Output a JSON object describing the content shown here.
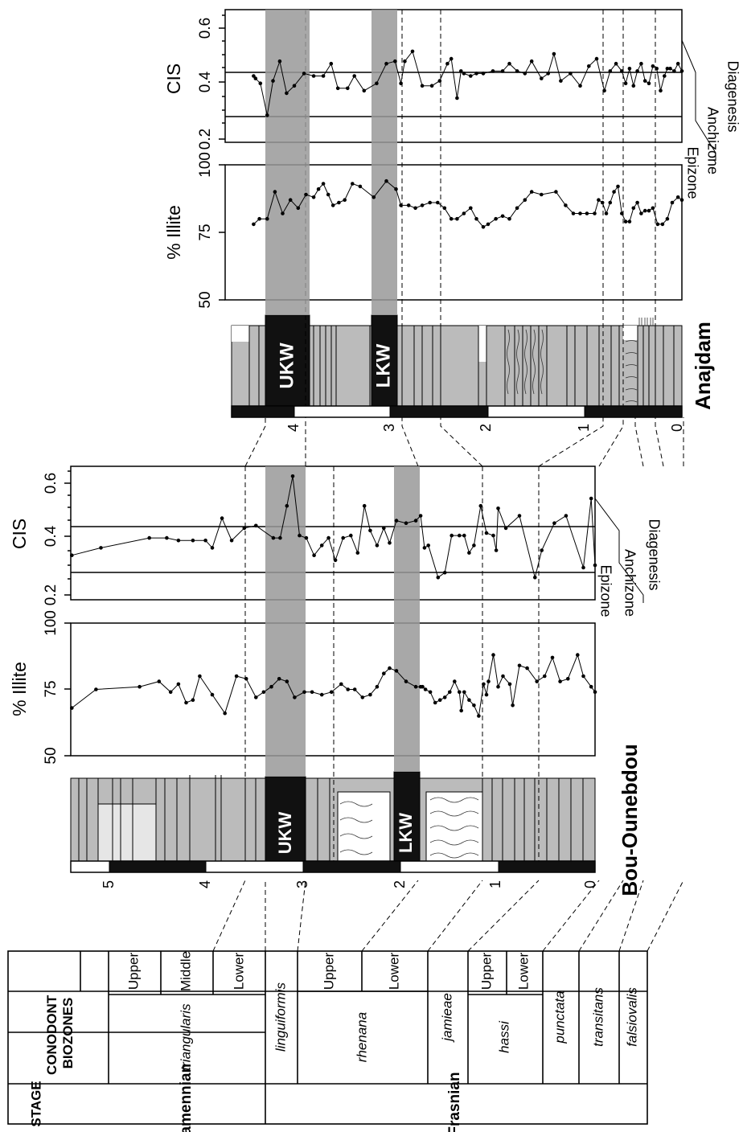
{
  "stage_table": {
    "header_stage": "STAGE",
    "header_biozones": "CONODONT BIOZONES",
    "stages": [
      "Famennian",
      "Frasnian"
    ],
    "biozones": [
      "triangularis",
      "linguiformis",
      "rhenana",
      "jamieae",
      "hassi",
      "punctata",
      "transitans",
      "falsiovalis"
    ],
    "subzones": {
      "triangularis": [
        "Upper",
        "Middle",
        "Lower"
      ],
      "rhenana": [
        "Upper",
        "Lower"
      ],
      "hassi": [
        "Upper",
        "Lower"
      ]
    }
  },
  "sections": [
    {
      "name": "Bou-Ounebdou",
      "scale_ticks": [
        "0",
        "1",
        "2",
        "3",
        "4",
        "5"
      ],
      "kellwasser_labels": [
        "UKW",
        "LKW"
      ],
      "illite_axis": {
        "label": "% Illite",
        "ticks": [
          "50",
          "75",
          "100"
        ],
        "range": [
          50,
          100
        ]
      },
      "cis_axis": {
        "label": "CIS",
        "ticks": [
          "0.2",
          "0.4",
          "0.6"
        ],
        "range": [
          0.12,
          0.66
        ]
      },
      "zone_labels": [
        "Epizone",
        "Anchizone",
        "Diagenesis"
      ]
    },
    {
      "name": "Anajdam",
      "scale_ticks": [
        "0",
        "1",
        "2",
        "3",
        "4"
      ],
      "kellwasser_labels": [
        "UKW",
        "LKW"
      ],
      "illite_axis": {
        "label": "% Illite",
        "ticks": [
          "50",
          "75",
          "100"
        ],
        "range": [
          50,
          100
        ]
      },
      "cis_axis": {
        "label": "CIS",
        "ticks": [
          "0.2",
          "0.4",
          "0.6"
        ],
        "range": [
          0.12,
          0.66
        ]
      },
      "zone_labels": [
        "Epizone",
        "Anchizone",
        "Diagenesis"
      ]
    }
  ],
  "chart_data": [
    {
      "type": "line",
      "section": "Bou-Ounebdou",
      "series": [
        {
          "x_unit": "m",
          "y_unit": "% Illite",
          "x": [
            0.0,
            0.04,
            0.12,
            0.18,
            0.28,
            0.36,
            0.44,
            0.52,
            0.6,
            0.7,
            0.78,
            0.85,
            0.88,
            0.95,
            1.0,
            1.05,
            1.1,
            1.12,
            1.15,
            1.2,
            1.25,
            1.3,
            1.35,
            1.38,
            1.4,
            1.45,
            1.5,
            1.55,
            1.6,
            1.65,
            1.7,
            1.75,
            1.78,
            1.8,
            1.85,
            1.95,
            2.05,
            2.12,
            2.18,
            2.25,
            2.32,
            2.4,
            2.48,
            2.55,
            2.62,
            2.72,
            2.82,
            2.92,
            3.0,
            3.1,
            3.18,
            3.26,
            3.34,
            3.42,
            3.5,
            3.6,
            3.7,
            3.82,
            3.95,
            4.08,
            4.15,
            4.22,
            4.3,
            4.38,
            4.5,
            4.7,
            5.15,
            5.4
          ],
          "y": [
            74,
            76,
            80,
            88,
            79,
            78,
            87,
            80,
            78,
            83,
            84,
            69,
            77,
            80,
            76,
            88,
            78,
            73,
            77,
            65,
            69,
            71,
            74,
            67,
            74,
            78,
            74,
            72,
            71,
            70,
            74,
            75,
            76,
            76,
            76,
            78,
            82,
            83,
            81,
            76,
            73,
            72,
            75,
            75,
            77,
            74,
            73,
            74,
            74,
            72,
            78,
            79,
            76,
            74,
            72,
            79,
            80,
            66,
            73,
            80,
            71,
            70,
            77,
            74,
            78,
            76,
            75,
            68
          ],
          "ylim": [
            50,
            100
          ]
        },
        {
          "x_unit": "m",
          "y_unit": "CIS",
          "x": [
            0.0,
            0.04,
            0.12,
            0.3,
            0.42,
            0.55,
            0.62,
            0.78,
            0.92,
            1.0,
            1.02,
            1.05,
            1.12,
            1.18,
            1.25,
            1.3,
            1.35,
            1.4,
            1.48,
            1.55,
            1.62,
            1.72,
            1.76,
            1.8,
            1.85,
            1.95,
            2.05,
            2.12,
            2.18,
            2.25,
            2.32,
            2.38,
            2.45,
            2.52,
            2.6,
            2.68,
            2.75,
            2.82,
            2.9,
            2.98,
            3.05,
            3.12,
            3.18,
            3.25,
            3.32,
            3.5,
            3.62,
            3.75,
            3.85,
            3.95,
            4.02,
            4.15,
            4.3,
            4.42,
            4.6,
            5.1,
            5.4
          ],
          "y": [
            0.26,
            0.53,
            0.25,
            0.46,
            0.43,
            0.32,
            0.21,
            0.46,
            0.41,
            0.49,
            0.32,
            0.38,
            0.39,
            0.5,
            0.34,
            0.31,
            0.38,
            0.38,
            0.38,
            0.23,
            0.21,
            0.34,
            0.33,
            0.46,
            0.44,
            0.43,
            0.44,
            0.35,
            0.41,
            0.34,
            0.4,
            0.5,
            0.31,
            0.38,
            0.37,
            0.28,
            0.37,
            0.34,
            0.3,
            0.37,
            0.38,
            0.62,
            0.5,
            0.37,
            0.37,
            0.42,
            0.41,
            0.36,
            0.45,
            0.33,
            0.36,
            0.36,
            0.36,
            0.37,
            0.37,
            0.33,
            0.3
          ],
          "ylim": [
            0.12,
            0.66
          ]
        }
      ]
    },
    {
      "type": "line",
      "section": "Anajdam",
      "series": [
        {
          "x_unit": "m",
          "y_unit": "% Illite",
          "x": [
            0.0,
            0.04,
            0.1,
            0.15,
            0.2,
            0.25,
            0.3,
            0.34,
            0.38,
            0.42,
            0.46,
            0.5,
            0.54,
            0.58,
            0.62,
            0.66,
            0.7,
            0.74,
            0.78,
            0.82,
            0.86,
            0.9,
            0.98,
            1.05,
            1.12,
            1.2,
            1.3,
            1.45,
            1.55,
            1.62,
            1.7,
            1.78,
            1.85,
            1.92,
            2.0,
            2.05,
            2.12,
            2.18,
            2.25,
            2.32,
            2.38,
            2.45,
            2.52,
            2.6,
            2.68,
            2.75,
            2.82,
            2.9,
            2.95,
            3.05,
            3.18,
            3.32,
            3.4,
            3.48,
            3.54,
            3.6,
            3.65,
            3.7,
            3.75,
            3.8,
            3.88,
            3.96,
            4.04,
            4.12,
            4.2,
            4.28,
            4.36,
            4.42
          ],
          "y": [
            87,
            88,
            86,
            80,
            78,
            78,
            84,
            83,
            83,
            82,
            86,
            84,
            79,
            79,
            82,
            92,
            90,
            86,
            82,
            86,
            87,
            82,
            82,
            82,
            82,
            85,
            90,
            89,
            90,
            87,
            84,
            80,
            81,
            80,
            78,
            77,
            80,
            84,
            82,
            80,
            80,
            84,
            86,
            86,
            85,
            84,
            85,
            85,
            91,
            94,
            88,
            92,
            93,
            87,
            86,
            85,
            89,
            93,
            91,
            88,
            89,
            84,
            87,
            82,
            90,
            80,
            80,
            78
          ],
          "ylim": [
            50,
            100
          ]
        },
        {
          "x_unit": "m",
          "y_unit": "CIS",
          "x": [
            0.0,
            0.04,
            0.08,
            0.12,
            0.15,
            0.18,
            0.22,
            0.26,
            0.3,
            0.34,
            0.38,
            0.42,
            0.46,
            0.5,
            0.54,
            0.58,
            0.62,
            0.68,
            0.74,
            0.8,
            0.88,
            0.96,
            1.05,
            1.15,
            1.25,
            1.32,
            1.38,
            1.45,
            1.55,
            1.62,
            1.7,
            1.78,
            1.85,
            1.95,
            2.05,
            2.12,
            2.18,
            2.25,
            2.28,
            2.32,
            2.38,
            2.42,
            2.5,
            2.58,
            2.68,
            2.78,
            2.86,
            2.9,
            2.96,
            3.05,
            3.15,
            3.28,
            3.38,
            3.45,
            3.55,
            3.62,
            3.7,
            3.8,
            3.9,
            4.0,
            4.08,
            4.15,
            4.22,
            4.28,
            4.35,
            4.4,
            4.42
          ],
          "y": [
            0.41,
            0.44,
            0.41,
            0.42,
            0.42,
            0.39,
            0.33,
            0.42,
            0.43,
            0.36,
            0.37,
            0.44,
            0.41,
            0.35,
            0.42,
            0.36,
            0.41,
            0.44,
            0.41,
            0.33,
            0.46,
            0.43,
            0.35,
            0.4,
            0.37,
            0.48,
            0.4,
            0.38,
            0.45,
            0.4,
            0.41,
            0.44,
            0.41,
            0.41,
            0.4,
            0.4,
            0.39,
            0.4,
            0.41,
            0.3,
            0.46,
            0.44,
            0.37,
            0.35,
            0.35,
            0.49,
            0.45,
            0.36,
            0.45,
            0.44,
            0.36,
            0.33,
            0.39,
            0.34,
            0.34,
            0.44,
            0.39,
            0.39,
            0.4,
            0.35,
            0.32,
            0.45,
            0.37,
            0.23,
            0.36,
            0.38,
            0.39
          ],
          "ylim": [
            0.12,
            0.66
          ]
        }
      ]
    }
  ]
}
